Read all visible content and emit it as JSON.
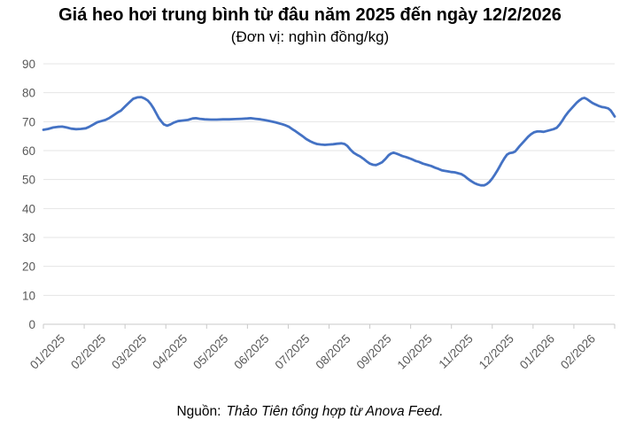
{
  "source": {
    "label": "Nguồn:",
    "credit": "Thảo Tiên tổng hợp từ Anova Feed."
  },
  "colors": {
    "line": "#4472C4",
    "grid": "#E4E4E4",
    "axis": "#C9C9C9",
    "tick_text": "#595959",
    "title_text": "#000000"
  },
  "chart_data": {
    "type": "line",
    "title": "Giá heo hơi trung bình từ đâu năm 2025 đến ngày 12/2/2026",
    "subtitle": "(Đơn vị: nghìn đồng/kg)",
    "unit": "nghìn đồng/kg",
    "xlabel": "",
    "ylabel": "",
    "legend": "none",
    "grid": "horizontal-only",
    "ylim": [
      0,
      90
    ],
    "y_ticks": [
      0,
      10,
      20,
      30,
      40,
      50,
      60,
      70,
      80,
      90
    ],
    "x_categories": [
      "01/2025",
      "02/2025",
      "03/2025",
      "04/2025",
      "05/2025",
      "06/2025",
      "07/2025",
      "08/2025",
      "09/2025",
      "10/2025",
      "11/2025",
      "12/2025",
      "01/2026",
      "02/2026"
    ],
    "x_span_months": 14,
    "series": [
      {
        "name": "Giá heo hơi trung bình (nghìn đồng/kg)",
        "color": "#4472C4",
        "points": [
          [
            0,
            67.2
          ],
          [
            0.12,
            67.5
          ],
          [
            0.24,
            68
          ],
          [
            0.35,
            68.2
          ],
          [
            0.46,
            68.3
          ],
          [
            0.57,
            68
          ],
          [
            0.68,
            67.6
          ],
          [
            0.8,
            67.4
          ],
          [
            0.92,
            67.5
          ],
          [
            1.04,
            67.7
          ],
          [
            1.12,
            68.2
          ],
          [
            1.22,
            69
          ],
          [
            1.32,
            69.8
          ],
          [
            1.42,
            70.2
          ],
          [
            1.52,
            70.6
          ],
          [
            1.62,
            71.3
          ],
          [
            1.72,
            72.2
          ],
          [
            1.82,
            73.2
          ],
          [
            1.9,
            73.8
          ],
          [
            2,
            75.2
          ],
          [
            2.1,
            76.6
          ],
          [
            2.2,
            77.9
          ],
          [
            2.3,
            78.4
          ],
          [
            2.4,
            78.5
          ],
          [
            2.48,
            78
          ],
          [
            2.56,
            77.3
          ],
          [
            2.63,
            76.1
          ],
          [
            2.7,
            74.6
          ],
          [
            2.76,
            73
          ],
          [
            2.83,
            71.2
          ],
          [
            2.89,
            70.1
          ],
          [
            2.95,
            69.1
          ],
          [
            3.03,
            68.6
          ],
          [
            3.12,
            69.1
          ],
          [
            3.2,
            69.7
          ],
          [
            3.3,
            70.2
          ],
          [
            3.42,
            70.4
          ],
          [
            3.54,
            70.6
          ],
          [
            3.66,
            71.1
          ],
          [
            3.74,
            71.2
          ],
          [
            3.83,
            71
          ],
          [
            3.95,
            70.8
          ],
          [
            4.1,
            70.7
          ],
          [
            4.25,
            70.7
          ],
          [
            4.4,
            70.8
          ],
          [
            4.55,
            70.8
          ],
          [
            4.7,
            70.9
          ],
          [
            4.85,
            71
          ],
          [
            5,
            71.1
          ],
          [
            5.08,
            71.2
          ],
          [
            5.2,
            71
          ],
          [
            5.32,
            70.8
          ],
          [
            5.45,
            70.5
          ],
          [
            5.58,
            70.1
          ],
          [
            5.68,
            69.8
          ],
          [
            5.78,
            69.4
          ],
          [
            5.86,
            69.1
          ],
          [
            5.94,
            68.7
          ],
          [
            6.02,
            68.2
          ],
          [
            6.1,
            67.4
          ],
          [
            6.18,
            66.7
          ],
          [
            6.27,
            65.8
          ],
          [
            6.35,
            65
          ],
          [
            6.44,
            64
          ],
          [
            6.54,
            63.2
          ],
          [
            6.62,
            62.7
          ],
          [
            6.7,
            62.3
          ],
          [
            6.8,
            62.1
          ],
          [
            6.9,
            62
          ],
          [
            7,
            62.1
          ],
          [
            7.1,
            62.2
          ],
          [
            7.2,
            62.4
          ],
          [
            7.3,
            62.5
          ],
          [
            7.38,
            62.3
          ],
          [
            7.45,
            61.6
          ],
          [
            7.52,
            60.4
          ],
          [
            7.6,
            59.3
          ],
          [
            7.68,
            58.6
          ],
          [
            7.76,
            58
          ],
          [
            7.84,
            57.2
          ],
          [
            7.92,
            56.3
          ],
          [
            8,
            55.5
          ],
          [
            8.08,
            55.1
          ],
          [
            8.15,
            55
          ],
          [
            8.22,
            55.4
          ],
          [
            8.3,
            56
          ],
          [
            8.38,
            57.1
          ],
          [
            8.46,
            58.4
          ],
          [
            8.52,
            59
          ],
          [
            8.58,
            59.3
          ],
          [
            8.65,
            59
          ],
          [
            8.72,
            58.6
          ],
          [
            8.8,
            58.1
          ],
          [
            8.88,
            57.8
          ],
          [
            8.96,
            57.4
          ],
          [
            9.05,
            56.9
          ],
          [
            9.13,
            56.4
          ],
          [
            9.2,
            56.1
          ],
          [
            9.3,
            55.5
          ],
          [
            9.4,
            55.1
          ],
          [
            9.5,
            54.7
          ],
          [
            9.6,
            54.1
          ],
          [
            9.68,
            53.7
          ],
          [
            9.76,
            53.2
          ],
          [
            9.84,
            53
          ],
          [
            9.92,
            52.8
          ],
          [
            10,
            52.6
          ],
          [
            10.08,
            52.5
          ],
          [
            10.16,
            52.2
          ],
          [
            10.24,
            51.9
          ],
          [
            10.32,
            51.2
          ],
          [
            10.4,
            50.3
          ],
          [
            10.48,
            49.5
          ],
          [
            10.56,
            48.8
          ],
          [
            10.64,
            48.3
          ],
          [
            10.72,
            48
          ],
          [
            10.8,
            48
          ],
          [
            10.87,
            48.5
          ],
          [
            10.93,
            49.2
          ],
          [
            11,
            50.4
          ],
          [
            11.06,
            51.6
          ],
          [
            11.12,
            53
          ],
          [
            11.18,
            54.5
          ],
          [
            11.24,
            56
          ],
          [
            11.3,
            57.4
          ],
          [
            11.36,
            58.6
          ],
          [
            11.42,
            59.1
          ],
          [
            11.5,
            59.3
          ],
          [
            11.56,
            59.7
          ],
          [
            11.62,
            60.7
          ],
          [
            11.68,
            61.7
          ],
          [
            11.75,
            62.8
          ],
          [
            11.82,
            63.9
          ],
          [
            11.88,
            64.8
          ],
          [
            11.95,
            65.7
          ],
          [
            12.02,
            66.3
          ],
          [
            12.1,
            66.6
          ],
          [
            12.18,
            66.6
          ],
          [
            12.26,
            66.5
          ],
          [
            12.34,
            66.8
          ],
          [
            12.42,
            67.1
          ],
          [
            12.5,
            67.4
          ],
          [
            12.58,
            67.9
          ],
          [
            12.65,
            69
          ],
          [
            12.72,
            70.4
          ],
          [
            12.79,
            72
          ],
          [
            12.86,
            73.3
          ],
          [
            12.93,
            74.4
          ],
          [
            13,
            75.5
          ],
          [
            13.07,
            76.6
          ],
          [
            13.13,
            77.3
          ],
          [
            13.2,
            78
          ],
          [
            13.26,
            78.2
          ],
          [
            13.32,
            77.8
          ],
          [
            13.38,
            77.2
          ],
          [
            13.45,
            76.5
          ],
          [
            13.52,
            76
          ],
          [
            13.6,
            75.5
          ],
          [
            13.68,
            75.1
          ],
          [
            13.76,
            74.9
          ],
          [
            13.84,
            74.6
          ],
          [
            13.9,
            73.9
          ],
          [
            13.95,
            72.9
          ],
          [
            14,
            71.8
          ]
        ]
      }
    ]
  }
}
